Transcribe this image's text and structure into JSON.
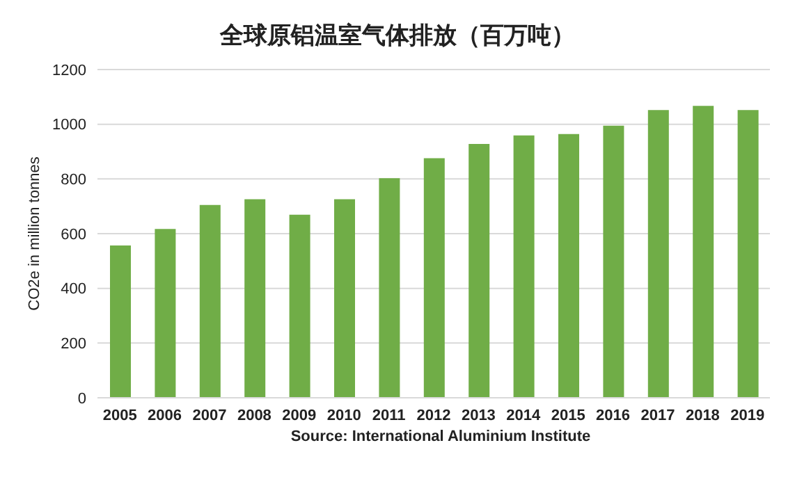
{
  "chart_data": {
    "type": "bar",
    "title": "全球原铝温室气体排放（百万吨）",
    "ylabel": "CO2e in million tonnes",
    "categories": [
      "2005",
      "2006",
      "2007",
      "2008",
      "2009",
      "2010",
      "2011",
      "2012",
      "2013",
      "2014",
      "2015",
      "2016",
      "2017",
      "2018",
      "2019"
    ],
    "values": [
      557,
      617,
      705,
      726,
      669,
      726,
      803,
      876,
      928,
      959,
      964,
      995,
      1052,
      1067,
      1052
    ],
    "color": "#70ad47",
    "ylim": [
      0,
      1200
    ],
    "yticks": [
      0,
      200,
      400,
      600,
      800,
      1000,
      1200
    ],
    "grid": "y",
    "annotations": [
      "Source: International Aluminium Institute"
    ]
  }
}
